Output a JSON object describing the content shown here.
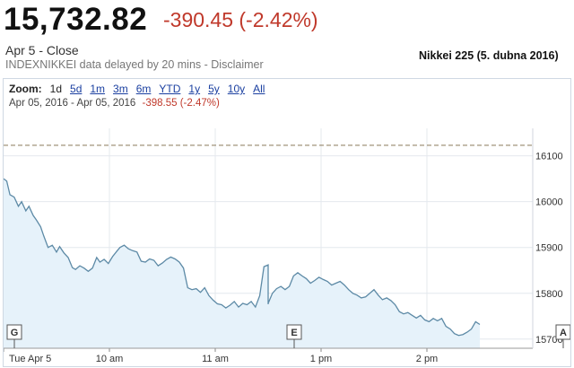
{
  "header": {
    "price": "15,732.82",
    "change": "-390.45 (-2.42%)",
    "close_label": "Apr 5 - Close",
    "delay_text": "INDEXNIKKEI data delayed by 20 mins - ",
    "disclaimer": "Disclaimer",
    "caption": "Nikkei 225 (5. dubna 2016)"
  },
  "toolbar": {
    "zoom_label": "Zoom:",
    "options": [
      "1d",
      "5d",
      "1m",
      "3m",
      "6m",
      "YTD",
      "1y",
      "5y",
      "10y",
      "All"
    ],
    "active": "1d",
    "range_text": "Apr 05, 2016  -  Apr 05, 2016",
    "range_change": "-398.55 (-2.47%)"
  },
  "flags": {
    "start": "G",
    "mid": "E",
    "end": "A"
  },
  "colors": {
    "line": "#5d8aa6",
    "fill": "#e6f2fa",
    "negative": "#c0392b",
    "prev_close_line": "#8a7a5a"
  },
  "chart_data": {
    "type": "area",
    "title": "",
    "xlabel": "",
    "ylabel": "",
    "x_unit": "time of day (hours, Tokyo)",
    "x_tick_labels": [
      {
        "x": 9.0,
        "label": "Tue Apr 5"
      },
      {
        "x": 10.0,
        "label": "10 am"
      },
      {
        "x": 11.0,
        "label": "11 am"
      },
      {
        "x": 13.0,
        "label": "1 pm"
      },
      {
        "x": 14.0,
        "label": "2 pm"
      }
    ],
    "y_ticks": [
      15700,
      15800,
      15900,
      16000,
      16100
    ],
    "ylim": [
      15680,
      16160
    ],
    "previous_close": 16123,
    "grid": true,
    "series": [
      {
        "name": "",
        "points": [
          [
            9.0,
            16050
          ],
          [
            9.03,
            16045
          ],
          [
            9.06,
            16015
          ],
          [
            9.1,
            16010
          ],
          [
            9.14,
            15990
          ],
          [
            9.17,
            16000
          ],
          [
            9.21,
            15980
          ],
          [
            9.24,
            15990
          ],
          [
            9.28,
            15970
          ],
          [
            9.31,
            15960
          ],
          [
            9.35,
            15945
          ],
          [
            9.38,
            15925
          ],
          [
            9.42,
            15900
          ],
          [
            9.46,
            15905
          ],
          [
            9.5,
            15890
          ],
          [
            9.53,
            15902
          ],
          [
            9.57,
            15888
          ],
          [
            9.61,
            15878
          ],
          [
            9.65,
            15856
          ],
          [
            9.68,
            15852
          ],
          [
            9.72,
            15860
          ],
          [
            9.76,
            15855
          ],
          [
            9.8,
            15848
          ],
          [
            9.84,
            15855
          ],
          [
            9.88,
            15878
          ],
          [
            9.91,
            15868
          ],
          [
            9.95,
            15874
          ],
          [
            9.99,
            15865
          ],
          [
            10.03,
            15880
          ],
          [
            10.07,
            15892
          ],
          [
            10.1,
            15900
          ],
          [
            10.14,
            15905
          ],
          [
            10.18,
            15897
          ],
          [
            10.22,
            15893
          ],
          [
            10.26,
            15890
          ],
          [
            10.3,
            15870
          ],
          [
            10.34,
            15868
          ],
          [
            10.38,
            15875
          ],
          [
            10.42,
            15872
          ],
          [
            10.46,
            15860
          ],
          [
            10.5,
            15866
          ],
          [
            10.54,
            15874
          ],
          [
            10.58,
            15879
          ],
          [
            10.62,
            15875
          ],
          [
            10.66,
            15868
          ],
          [
            10.7,
            15855
          ],
          [
            10.74,
            15812
          ],
          [
            10.78,
            15808
          ],
          [
            10.82,
            15810
          ],
          [
            10.86,
            15802
          ],
          [
            10.9,
            15812
          ],
          [
            10.94,
            15795
          ],
          [
            10.98,
            15785
          ],
          [
            11.02,
            15777
          ],
          [
            11.06,
            15775
          ],
          [
            11.1,
            15768
          ],
          [
            11.14,
            15774
          ],
          [
            11.18,
            15782
          ],
          [
            11.22,
            15770
          ],
          [
            11.26,
            15778
          ],
          [
            11.3,
            15775
          ],
          [
            11.34,
            15782
          ],
          [
            11.38,
            15770
          ],
          [
            11.42,
            15795
          ],
          [
            11.46,
            15858
          ],
          [
            11.5,
            15862
          ],
          [
            11.54,
            15850
          ],
          [
            11.58,
            15828
          ],
          [
            11.62,
            15820
          ],
          [
            11.66,
            15815
          ],
          [
            11.7,
            15818
          ],
          [
            11.74,
            15810
          ],
          [
            11.78,
            15802
          ],
          [
            11.82,
            15790
          ],
          [
            11.86,
            15782
          ],
          [
            11.9,
            15776
          ],
          [
            11.94,
            15782
          ],
          [
            11.98,
            15778
          ],
          [
            12.5,
            15778
          ],
          [
            12.54,
            15800
          ],
          [
            12.58,
            15810
          ],
          [
            12.62,
            15815
          ],
          [
            12.66,
            15808
          ],
          [
            12.7,
            15815
          ],
          [
            12.74,
            15838
          ],
          [
            12.78,
            15845
          ],
          [
            12.82,
            15838
          ],
          [
            12.86,
            15832
          ],
          [
            12.9,
            15822
          ],
          [
            12.94,
            15828
          ],
          [
            12.98,
            15835
          ],
          [
            13.02,
            15830
          ],
          [
            13.06,
            15826
          ],
          [
            13.1,
            15818
          ],
          [
            13.14,
            15822
          ],
          [
            13.18,
            15826
          ],
          [
            13.22,
            15818
          ],
          [
            13.26,
            15808
          ],
          [
            13.3,
            15800
          ],
          [
            13.34,
            15796
          ],
          [
            13.38,
            15790
          ],
          [
            13.42,
            15792
          ],
          [
            13.46,
            15800
          ],
          [
            13.5,
            15808
          ],
          [
            13.54,
            15796
          ],
          [
            13.58,
            15786
          ],
          [
            13.62,
            15790
          ],
          [
            13.66,
            15784
          ],
          [
            13.7,
            15775
          ],
          [
            13.74,
            15760
          ],
          [
            13.78,
            15755
          ],
          [
            13.82,
            15758
          ],
          [
            13.86,
            15752
          ],
          [
            13.9,
            15746
          ],
          [
            13.94,
            15752
          ],
          [
            13.98,
            15742
          ],
          [
            14.02,
            15738
          ],
          [
            14.06,
            15745
          ],
          [
            14.1,
            15740
          ],
          [
            14.14,
            15745
          ],
          [
            14.18,
            15728
          ],
          [
            14.22,
            15722
          ],
          [
            14.26,
            15712
          ],
          [
            14.3,
            15708
          ],
          [
            14.34,
            15710
          ],
          [
            14.38,
            15715
          ],
          [
            14.42,
            15722
          ],
          [
            14.46,
            15738
          ],
          [
            14.5,
            15732
          ]
        ]
      }
    ]
  }
}
